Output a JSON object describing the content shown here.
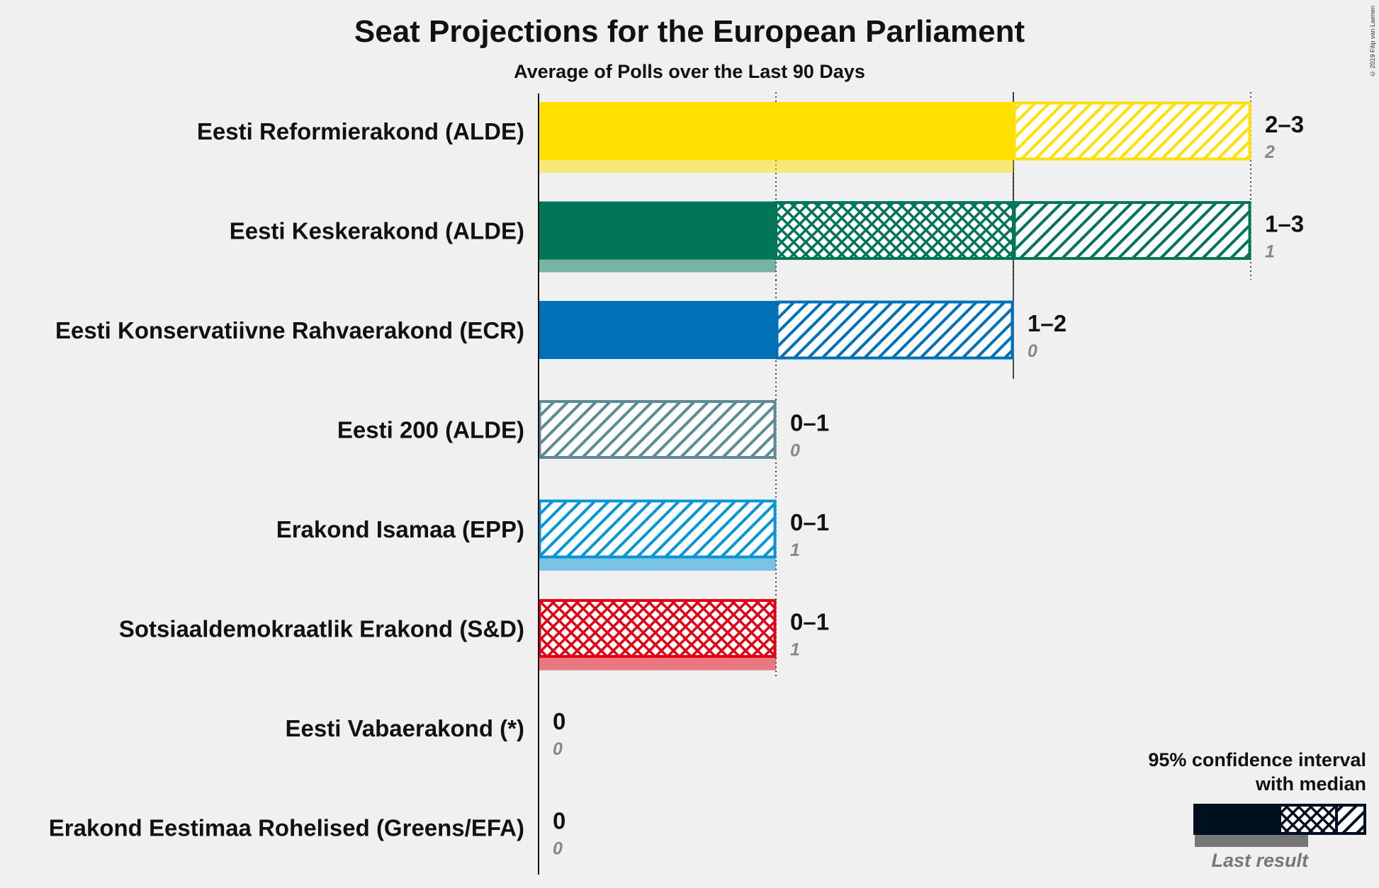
{
  "title": "Seat Projections for the European Parliament",
  "subtitle": "Average of Polls over the Last 90 Days",
  "copyright": "© 2019 Filip van Laenen",
  "chart_data": {
    "type": "bar",
    "orientation": "horizontal",
    "xlim": [
      0,
      3
    ],
    "gridlines": [
      1,
      2,
      3
    ],
    "parties": [
      {
        "name": "Eesti Reformierakond (ALDE)",
        "color": "#ffe000",
        "median": 2,
        "ci_low": 2,
        "ci_high": 3,
        "range_label": "2–3",
        "last_result": 2,
        "last_label": "2"
      },
      {
        "name": "Eesti Keskerakond (ALDE)",
        "color": "#007557",
        "median": 1,
        "ci_low": 1,
        "ci_high": 3,
        "range_label": "1–3",
        "last_result": 1,
        "last_label": "1"
      },
      {
        "name": "Eesti Konservatiivne Rahvaerakond (ECR)",
        "color": "#0070b8",
        "median": 1,
        "ci_low": 1,
        "ci_high": 2,
        "range_label": "1–2",
        "last_result": 0,
        "last_label": "0"
      },
      {
        "name": "Eesti 200 (ALDE)",
        "color": "#5c8a95",
        "median": 0,
        "ci_low": 0,
        "ci_high": 1,
        "range_label": "0–1",
        "last_result": 0,
        "last_label": "0"
      },
      {
        "name": "Erakond Isamaa (EPP)",
        "color": "#0696d7",
        "median": 0,
        "ci_low": 0,
        "ci_high": 1,
        "range_label": "0–1",
        "last_result": 1,
        "last_label": "1"
      },
      {
        "name": "Sotsiaaldemokraatlik Erakond (S&D)",
        "color": "#e10014",
        "median": 0,
        "ci_low": 0,
        "ci_high": 1,
        "range_label": "0–1",
        "last_result": 1,
        "last_label": "1"
      },
      {
        "name": "Eesti Vabaerakond (*)",
        "color": "#888888",
        "median": 0,
        "ci_low": 0,
        "ci_high": 0,
        "range_label": "0",
        "last_result": 0,
        "last_label": "0"
      },
      {
        "name": "Erakond Eestimaa Rohelised (Greens/EFA)",
        "color": "#6ab023",
        "median": 0,
        "ci_low": 0,
        "ci_high": 0,
        "range_label": "0",
        "last_result": 0,
        "last_label": "0"
      }
    ],
    "legend": {
      "line1": "95% confidence interval",
      "line2": "with median",
      "last_result": "Last result",
      "placement": "bottom-right",
      "color": "#001020"
    }
  }
}
